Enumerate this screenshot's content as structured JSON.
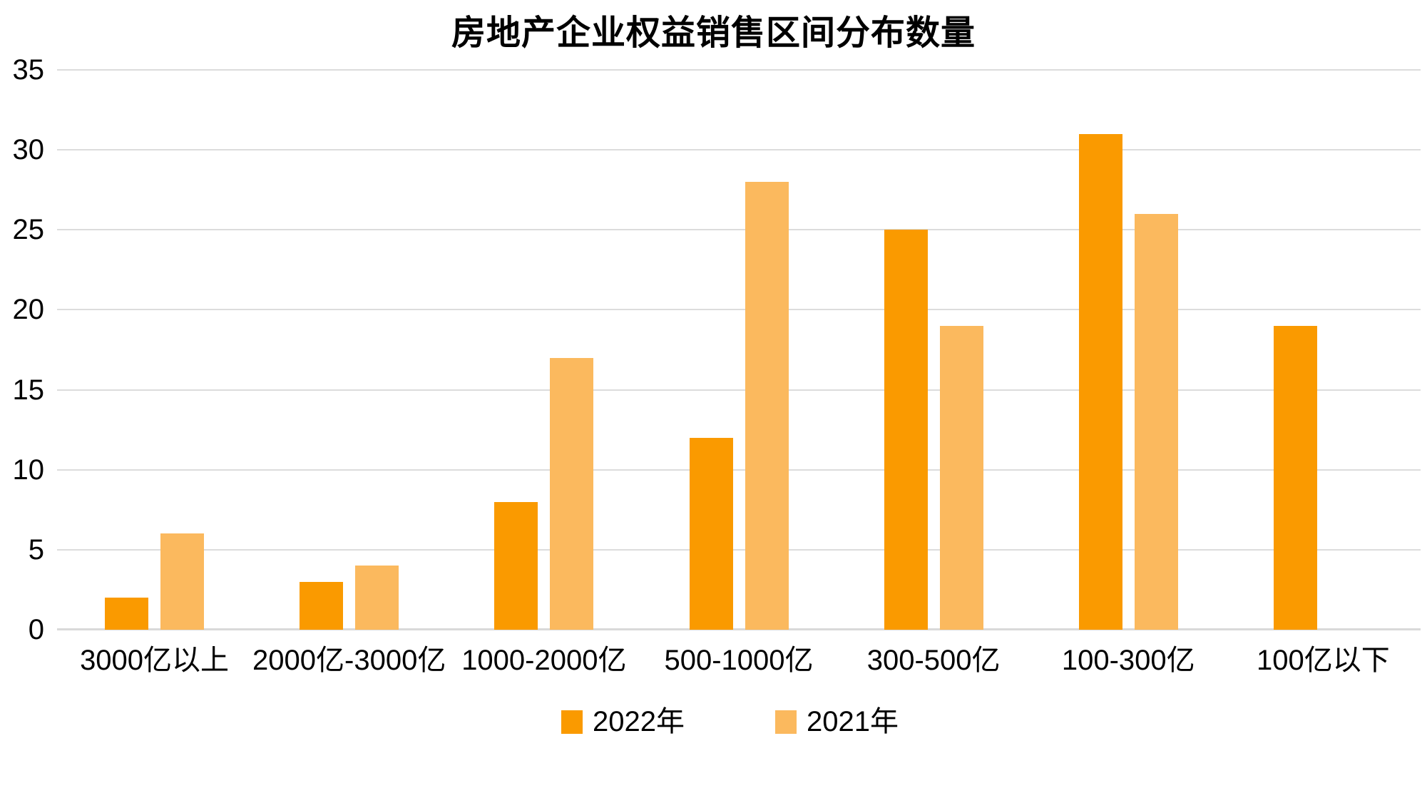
{
  "chart_data": {
    "type": "bar",
    "title": "房地产企业权益销售区间分布数量",
    "categories": [
      "3000亿以上",
      "2000亿-3000亿",
      "1000-2000亿",
      "500-1000亿",
      "300-500亿",
      "100-300亿",
      "100亿以下"
    ],
    "series": [
      {
        "name": "2022年",
        "color": "#fa9a00",
        "values": [
          2,
          3,
          8,
          12,
          25,
          31,
          19
        ]
      },
      {
        "name": "2021年",
        "color": "#fbb95e",
        "values": [
          6,
          4,
          17,
          28,
          19,
          26,
          null
        ]
      }
    ],
    "xlabel": "",
    "ylabel": "",
    "ylim": [
      0,
      35
    ],
    "yticks": [
      0,
      5,
      10,
      15,
      20,
      25,
      30,
      35
    ],
    "grid": true,
    "legend_position": "bottom",
    "gridline_color": "#dcdcdc",
    "axis_color": "#d9d9d9",
    "text_color": "#000000",
    "background_color": "#ffffff"
  }
}
